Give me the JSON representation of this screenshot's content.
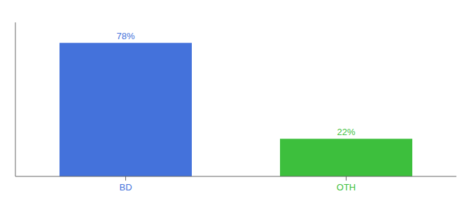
{
  "chart_data": {
    "type": "bar",
    "categories": [
      "BD",
      "OTH"
    ],
    "values": [
      78,
      22
    ],
    "value_labels": [
      "78%",
      "22%"
    ],
    "colors": [
      "#4472db",
      "#3dbf3d"
    ],
    "ylim": [
      0,
      90
    ],
    "data_labels": true,
    "tick_labels": "x",
    "grid": false
  }
}
